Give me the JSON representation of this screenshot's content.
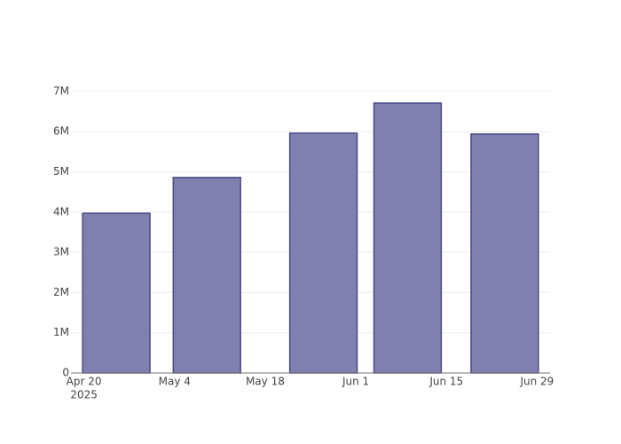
{
  "chart_data": {
    "type": "bar",
    "x": [
      "2025-04-25",
      "2025-05-09",
      "2025-05-27",
      "2025-06-09",
      "2025-06-24"
    ],
    "values": [
      3970000,
      4860000,
      5960000,
      6710000,
      5940000
    ],
    "color": "#7f7fb0",
    "edge_color": "#4b4b85",
    "xlim": [
      "2025-04-18",
      "2025-07-01"
    ],
    "xticks": [
      {
        "value": "2025-04-20",
        "label": "Apr 20",
        "sublabel": "2025"
      },
      {
        "value": "2025-05-04",
        "label": "May 4"
      },
      {
        "value": "2025-05-18",
        "label": "May 18"
      },
      {
        "value": "2025-06-01",
        "label": "Jun 1"
      },
      {
        "value": "2025-06-15",
        "label": "Jun 15"
      },
      {
        "value": "2025-06-29",
        "label": "Jun 29"
      }
    ],
    "ylim": [
      0,
      7100000
    ],
    "yticks": [
      0,
      {
        "value": 1000000,
        "label": "1M"
      },
      {
        "value": 2000000,
        "label": "2M"
      },
      {
        "value": 3000000,
        "label": "3M"
      },
      {
        "value": 4000000,
        "label": "4M"
      },
      {
        "value": 5000000,
        "label": "5M"
      },
      {
        "value": 6000000,
        "label": "6M"
      },
      {
        "value": 7000000,
        "label": "7M"
      }
    ],
    "grid": true
  }
}
